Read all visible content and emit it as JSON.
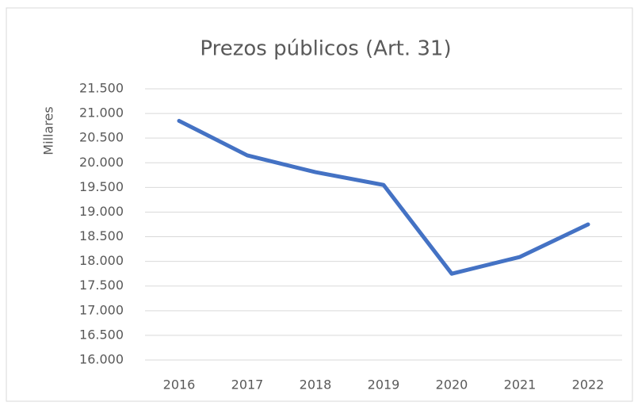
{
  "chart_data": {
    "type": "line",
    "title": "Prezos públicos (Art. 31)",
    "y_label": "Millares",
    "categories": [
      "2016",
      "2017",
      "2018",
      "2019",
      "2020",
      "2021",
      "2022"
    ],
    "series": [
      {
        "name": "Prezos públicos",
        "color": "#4472c4",
        "values": [
          20850,
          20150,
          19810,
          19550,
          17750,
          18090,
          18750
        ]
      }
    ],
    "ylim": [
      16000,
      21500
    ],
    "yticks": [
      {
        "value": 16000,
        "label": "16.000"
      },
      {
        "value": 16500,
        "label": "16.500"
      },
      {
        "value": 17000,
        "label": "17.000"
      },
      {
        "value": 17500,
        "label": "17.500"
      },
      {
        "value": 18000,
        "label": "18.000"
      },
      {
        "value": 18500,
        "label": "18.500"
      },
      {
        "value": 19000,
        "label": "19.000"
      },
      {
        "value": 19500,
        "label": "19.500"
      },
      {
        "value": 20000,
        "label": "20.000"
      },
      {
        "value": 20500,
        "label": "20.500"
      },
      {
        "value": 21000,
        "label": "21.000"
      },
      {
        "value": 21500,
        "label": "21.500"
      }
    ],
    "grid": true
  }
}
